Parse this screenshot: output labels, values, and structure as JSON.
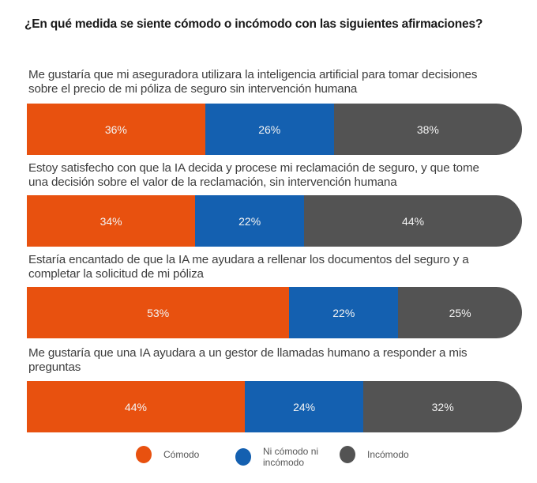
{
  "chart_data": {
    "type": "bar",
    "orientation": "horizontal-stacked-100",
    "title": "¿En qué medida se siente cómodo o incómodo con las siguientes afirmaciones?",
    "categories": [
      "Me gustaría que mi aseguradora utilizara la inteligencia artificial para tomar decisiones sobre el precio de mi póliza de seguro sin intervención humana",
      "Estoy satisfecho con que la IA decida y procese mi reclamación de seguro, y que tome una decisión sobre el valor de la reclamación, sin intervención humana",
      "Estaría encantado de que la IA me ayudara a rellenar los documentos del seguro y a completar la solicitud de mi póliza",
      "Me gustaría que una IA ayudara a un gestor de llamadas humano a responder a mis preguntas"
    ],
    "category_lines": [
      [
        "Me gustaría que mi aseguradora utilizara la inteligencia artificial para tomar decisiones",
        "sobre el precio de mi póliza de seguro sin intervención humana"
      ],
      [
        "Estoy satisfecho con que la IA decida y procese mi reclamación de seguro, y que tome",
        "una decisión sobre el valor de la reclamación, sin intervención humana"
      ],
      [
        "Estaría encantado de que la IA me ayudara a rellenar los documentos del seguro y a",
        "completar la solicitud de mi póliza"
      ],
      [
        "Me gustaría que una IA ayudara a un gestor de llamadas humano a responder a mis",
        "preguntas"
      ]
    ],
    "series": [
      {
        "name": "Cómodo",
        "color": "#E8510F",
        "values": [
          36,
          34,
          53,
          44
        ]
      },
      {
        "name": "Ni cómodo ni incómodo",
        "color": "#1460B0",
        "values": [
          26,
          22,
          22,
          24
        ]
      },
      {
        "name": "Incómodo",
        "color": "#535353",
        "values": [
          38,
          44,
          25,
          32
        ]
      }
    ],
    "value_suffix": "%",
    "xlabel": "",
    "ylabel": "",
    "xlim": [
      0,
      100
    ],
    "grid": false,
    "legend": "bottom-center"
  },
  "legend_lines": [
    [
      "Cómodo"
    ],
    [
      "Ni cómodo ni",
      "incómodo"
    ],
    [
      "Incómodo"
    ]
  ]
}
